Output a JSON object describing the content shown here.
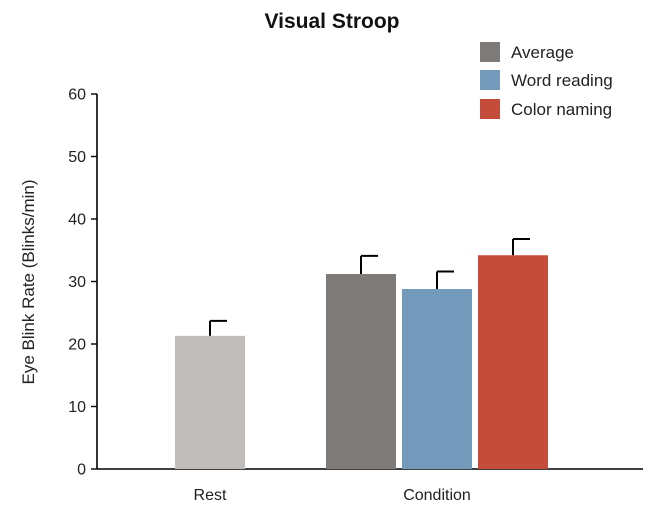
{
  "chart_data": {
    "type": "bar",
    "title": "Visual Stroop",
    "xlabel": "",
    "ylabel": "Eye Blink Rate (Blinks/min)",
    "ylim": [
      0,
      60
    ],
    "yticks": [
      0,
      10,
      20,
      30,
      40,
      50,
      60
    ],
    "grid": false,
    "legend_position": "top-right",
    "groups": [
      "Rest",
      "Condition"
    ],
    "bars": [
      {
        "group": "Rest",
        "series": null,
        "value": 21.3,
        "error": 2.4,
        "color": "#bfbcb9"
      },
      {
        "group": "Condition",
        "series": "Average",
        "value": 31.2,
        "error": 2.9,
        "color": "#7f7b79"
      },
      {
        "group": "Condition",
        "series": "Word reading",
        "value": 28.8,
        "error": 2.8,
        "color": "#7399bb"
      },
      {
        "group": "Condition",
        "series": "Color naming",
        "value": 34.2,
        "error": 2.6,
        "color": "#c54b3b"
      }
    ],
    "legend": [
      {
        "name": "Average",
        "color": "#7f7b79"
      },
      {
        "name": "Word reading",
        "color": "#7399bb"
      },
      {
        "name": "Color naming",
        "color": "#c54b3b"
      }
    ]
  }
}
